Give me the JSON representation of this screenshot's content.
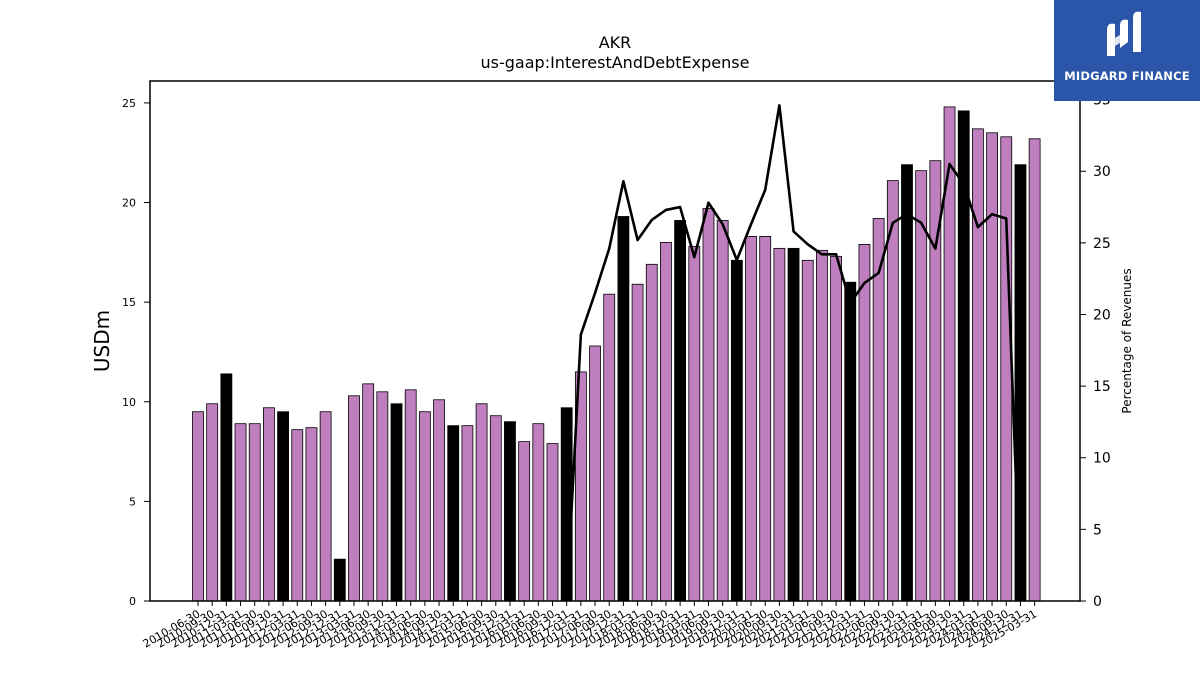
{
  "logo": {
    "text": "MIDGARD FINANCE",
    "icon": "midgard-m-icon",
    "bg_color": "#2a55a8"
  },
  "chart_data": {
    "type": "bar",
    "title": "AKR",
    "subtitle": "us-gaap:InterestAndDebtExpense",
    "ylabel": "USDm",
    "y2label": "Percentage of Revenues",
    "ylim": [
      0,
      26.1
    ],
    "y2lim": [
      0,
      36.3
    ],
    "yticks": [
      0,
      5,
      10,
      15,
      20,
      25
    ],
    "y2ticks": [
      0,
      5,
      10,
      15,
      20,
      25,
      30,
      35
    ],
    "colors": {
      "quarter_bar": "#bf7fbf",
      "annual_bar": "#000000",
      "line": "#000000"
    },
    "categories": [
      "2010-06-30",
      "2010-09-30",
      "2010-12-31",
      "2011-03-31",
      "2011-06-30",
      "2011-09-30",
      "2011-12-31",
      "2012-03-31",
      "2012-06-30",
      "2012-09-30",
      "2012-12-31",
      "2013-03-31",
      "2013-06-30",
      "2013-09-30",
      "2013-12-31",
      "2014-03-31",
      "2014-06-30",
      "2014-09-30",
      "2014-12-31",
      "2015-03-31",
      "2015-06-30",
      "2015-09-30",
      "2015-12-31",
      "2016-03-31",
      "2016-06-30",
      "2016-09-30",
      "2016-12-31",
      "2017-03-31",
      "2017-06-30",
      "2017-09-30",
      "2017-12-31",
      "2018-03-31",
      "2018-06-30",
      "2018-09-30",
      "2018-12-31",
      "2019-03-31",
      "2019-06-30",
      "2019-09-30",
      "2019-12-31",
      "2020-03-31",
      "2020-06-30",
      "2020-09-30",
      "2020-12-31",
      "2021-03-31",
      "2021-06-30",
      "2021-09-30",
      "2021-12-31",
      "2022-03-31",
      "2022-06-30",
      "2022-09-30",
      "2022-12-31",
      "2023-03-31",
      "2023-06-30",
      "2023-09-30",
      "2023-12-31",
      "2024-03-31",
      "2024-06-30",
      "2024-09-30",
      "2024-12-31",
      "2025-03-31"
    ],
    "tick_labels": [
      "2010-06-30",
      "2010-09-30",
      "2010-12-31",
      "2011-03-31",
      "2011-06-30",
      "2011-09-30",
      "2011-12-31",
      "2012-03-31",
      "2012-06-30",
      "2012-09-30",
      "2012-12-31",
      "2013-03-31",
      "2013-06-30",
      "2013-09-30",
      "2013-12-31",
      "2014-03-31",
      "2014-06-30",
      "2014-09-30",
      "2014-12-31",
      "2015-03-31",
      "2015-06-30",
      "2015-09-30",
      "2015-12-31",
      "2016-03-31",
      "2016-06-30",
      "2016-09-30",
      "2016-12-31",
      "2017-03-31",
      "2017-06-30",
      "2017-09-30",
      "2017-12-31",
      "2018-03-31",
      "2018-06-30",
      "2018-09-30",
      "2018-12-31",
      "2019-03-31",
      "2019-06-30",
      "2019-09-30",
      "2019-12-31",
      "2020-03-31",
      "2020-06-30",
      "2020-09-30",
      "2020-12-31",
      "2021-03-31",
      "2021-06-30",
      "2021-09-30",
      "2021-12-31",
      "2022-03-31",
      "2022-06-30",
      "2022-09-30",
      "2022-12-31",
      "2023-03-31",
      "2023-06-30",
      "2023-09-30",
      "2023-12-31",
      "2024-03-31",
      "2024-06-30",
      "2024-09-30",
      "2024-12-31",
      "2025-03-31"
    ],
    "series": [
      {
        "values": [
          9.5,
          9.9,
          11.4,
          8.9,
          8.9,
          9.7,
          9.5,
          8.6,
          8.7,
          9.5,
          2.1,
          10.3,
          10.9,
          10.5,
          9.9,
          10.6,
          9.5,
          10.1,
          8.8,
          8.8,
          9.9,
          9.3,
          9.0,
          8.0,
          8.9,
          7.9,
          9.7,
          11.5,
          12.8,
          15.4,
          19.3,
          15.9,
          16.9,
          18.0,
          19.1,
          17.8,
          19.7,
          19.1,
          17.1,
          18.3,
          18.3,
          17.7,
          17.7,
          17.1,
          17.6,
          17.3,
          16.0,
          17.9,
          19.2,
          21.1,
          21.9,
          21.6,
          22.1,
          24.8,
          24.6,
          23.7,
          23.5,
          23.3,
          21.9,
          23.2
        ],
        "annual": [
          false,
          false,
          true,
          false,
          false,
          false,
          true,
          false,
          false,
          false,
          true,
          false,
          false,
          false,
          true,
          false,
          false,
          false,
          true,
          false,
          false,
          false,
          true,
          false,
          false,
          false,
          true,
          false,
          false,
          false,
          true,
          false,
          false,
          false,
          true,
          false,
          false,
          false,
          true,
          false,
          false,
          false,
          true,
          false,
          false,
          false,
          true,
          false,
          false,
          false,
          true,
          false,
          false,
          false,
          true,
          false,
          false,
          false,
          true,
          false
        ]
      },
      {
        "axis": "right",
        "values": [
          null,
          null,
          null,
          null,
          null,
          null,
          null,
          null,
          null,
          null,
          null,
          null,
          null,
          null,
          null,
          null,
          null,
          null,
          null,
          null,
          null,
          null,
          null,
          null,
          null,
          null,
          0.0,
          18.6,
          21.5,
          24.6,
          29.3,
          25.2,
          26.6,
          27.3,
          27.5,
          24.0,
          27.8,
          26.3,
          23.8,
          26.3,
          28.7,
          34.6,
          25.8,
          24.9,
          24.2,
          24.2,
          20.8,
          22.2,
          22.9,
          26.4,
          27.0,
          26.4,
          24.6,
          30.5,
          29.1,
          26.1,
          27.0,
          26.7,
          0.0,
          null
        ]
      }
    ],
    "grid": false,
    "legend": "none"
  }
}
